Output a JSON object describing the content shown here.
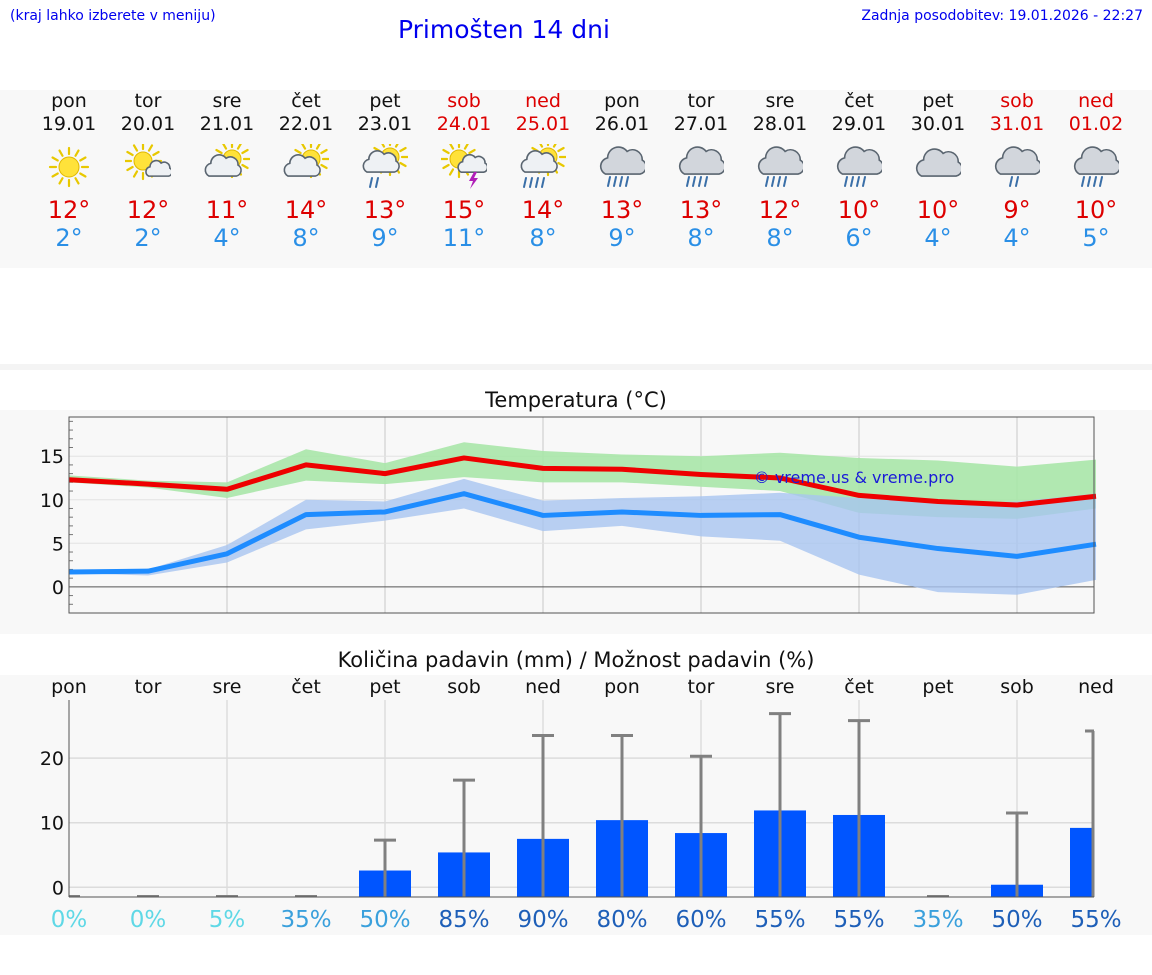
{
  "header": {
    "menu_hint": "(kraj lahko izberete v meniju)",
    "title": "Primošten 14 dni",
    "updated": "Zadnja posodobitev: 19.01.2026 - 22:27"
  },
  "colors": {
    "link": "#0000ee",
    "max_temp": "#dd0000",
    "min_temp": "#2a8fe6",
    "bar": "#0055ff",
    "max_band": "#a8e6a8",
    "min_band": "#a8c4f0",
    "overlap_band": "#84c2a8"
  },
  "days": [
    {
      "name": "pon",
      "date": "19.01",
      "weekend": false,
      "icon": "sun-icon",
      "tmax": "12°",
      "tmin": "2°"
    },
    {
      "name": "tor",
      "date": "20.01",
      "weekend": false,
      "icon": "sun-small-cloud-icon",
      "tmax": "12°",
      "tmin": "2°"
    },
    {
      "name": "sre",
      "date": "21.01",
      "weekend": false,
      "icon": "sun-cloud-icon",
      "tmax": "11°",
      "tmin": "4°"
    },
    {
      "name": "čet",
      "date": "22.01",
      "weekend": false,
      "icon": "sun-cloud-icon",
      "tmax": "14°",
      "tmin": "8°"
    },
    {
      "name": "pet",
      "date": "23.01",
      "weekend": false,
      "icon": "sun-cloud-light-rain-icon",
      "tmax": "13°",
      "tmin": "9°"
    },
    {
      "name": "sob",
      "date": "24.01",
      "weekend": true,
      "icon": "sun-cloud-thunder-icon",
      "tmax": "15°",
      "tmin": "11°"
    },
    {
      "name": "ned",
      "date": "25.01",
      "weekend": true,
      "icon": "sun-cloud-rain-icon",
      "tmax": "14°",
      "tmin": "8°"
    },
    {
      "name": "pon",
      "date": "26.01",
      "weekend": false,
      "icon": "cloud-rain-icon",
      "tmax": "13°",
      "tmin": "9°"
    },
    {
      "name": "tor",
      "date": "27.01",
      "weekend": false,
      "icon": "cloud-rain-icon",
      "tmax": "13°",
      "tmin": "8°"
    },
    {
      "name": "sre",
      "date": "28.01",
      "weekend": false,
      "icon": "cloud-rain-icon",
      "tmax": "12°",
      "tmin": "8°"
    },
    {
      "name": "čet",
      "date": "29.01",
      "weekend": false,
      "icon": "cloud-rain-icon",
      "tmax": "10°",
      "tmin": "6°"
    },
    {
      "name": "pet",
      "date": "30.01",
      "weekend": false,
      "icon": "cloud-icon",
      "tmax": "10°",
      "tmin": "4°"
    },
    {
      "name": "sob",
      "date": "31.01",
      "weekend": true,
      "icon": "cloud-light-rain-icon",
      "tmax": "9°",
      "tmin": "4°"
    },
    {
      "name": "ned",
      "date": "01.02",
      "weekend": true,
      "icon": "cloud-rain-icon",
      "tmax": "10°",
      "tmin": "5°"
    }
  ],
  "chart_data": [
    {
      "type": "line",
      "title": "Temperatura (°C)",
      "watermark": "© vreme.us & vreme.pro",
      "ylim": [
        -3,
        19.5
      ],
      "yticks": [
        0,
        5,
        10,
        15
      ],
      "x": [
        0,
        1,
        2,
        3,
        4,
        5,
        6,
        7,
        8,
        9,
        10,
        11,
        12,
        13
      ],
      "series": [
        {
          "name": "max",
          "values": [
            12.3,
            11.8,
            11.2,
            14.0,
            13.0,
            14.8,
            13.6,
            13.5,
            12.9,
            12.5,
            10.5,
            9.8,
            9.4,
            10.4
          ],
          "band_low": [
            12.0,
            11.4,
            10.2,
            12.2,
            11.8,
            12.6,
            12.0,
            12.0,
            11.5,
            11.0,
            8.5,
            8.0,
            7.8,
            9.0
          ],
          "band_high": [
            12.8,
            12.2,
            12.0,
            15.8,
            14.2,
            16.6,
            15.6,
            15.2,
            15.0,
            15.4,
            14.8,
            14.5,
            13.8,
            14.6
          ]
        },
        {
          "name": "min",
          "values": [
            1.7,
            1.8,
            3.8,
            8.3,
            8.6,
            10.7,
            8.2,
            8.6,
            8.2,
            8.3,
            5.7,
            4.4,
            3.5,
            4.9
          ],
          "band_low": [
            1.6,
            1.3,
            2.8,
            6.6,
            7.6,
            9.0,
            6.4,
            7.0,
            5.8,
            5.3,
            1.4,
            -0.6,
            -0.9,
            0.8
          ],
          "band_high": [
            1.9,
            2.0,
            4.8,
            10.0,
            9.8,
            12.4,
            9.9,
            10.2,
            10.4,
            10.8,
            10.2,
            9.6,
            9.8,
            10.7
          ]
        }
      ]
    },
    {
      "type": "bar",
      "title": "Količina padavin (mm) / Možnost padavin (%)",
      "categories": [
        "pon",
        "tor",
        "sre",
        "čet",
        "pet",
        "sob",
        "ned",
        "pon",
        "tor",
        "sre",
        "čet",
        "pet",
        "sob",
        "ned"
      ],
      "ylim": [
        -1.5,
        29
      ],
      "yticks": [
        0,
        10,
        20
      ],
      "values": [
        0,
        0,
        0,
        0,
        2.6,
        5.4,
        7.5,
        10.4,
        8.4,
        11.9,
        11.2,
        0,
        0.4,
        9.2
      ],
      "error_high": [
        0,
        0,
        0,
        0,
        7.3,
        16.6,
        23.5,
        23.5,
        20.3,
        26.9,
        25.8,
        0,
        11.5,
        24.2
      ],
      "probability": [
        "0%",
        "0%",
        "5%",
        "35%",
        "50%",
        "85%",
        "90%",
        "80%",
        "60%",
        "55%",
        "55%",
        "35%",
        "50%",
        "55%"
      ],
      "probability_colors": [
        "#5fd8e6",
        "#5fd8e6",
        "#5fd8e6",
        "#3aa0dc",
        "#3aa0dc",
        "#1e5fb8",
        "#1e5fb8",
        "#1e5fb8",
        "#1e5fb8",
        "#1e5fb8",
        "#1e5fb8",
        "#3aa0dc",
        "#1e5fb8",
        "#1e5fb8"
      ]
    }
  ]
}
